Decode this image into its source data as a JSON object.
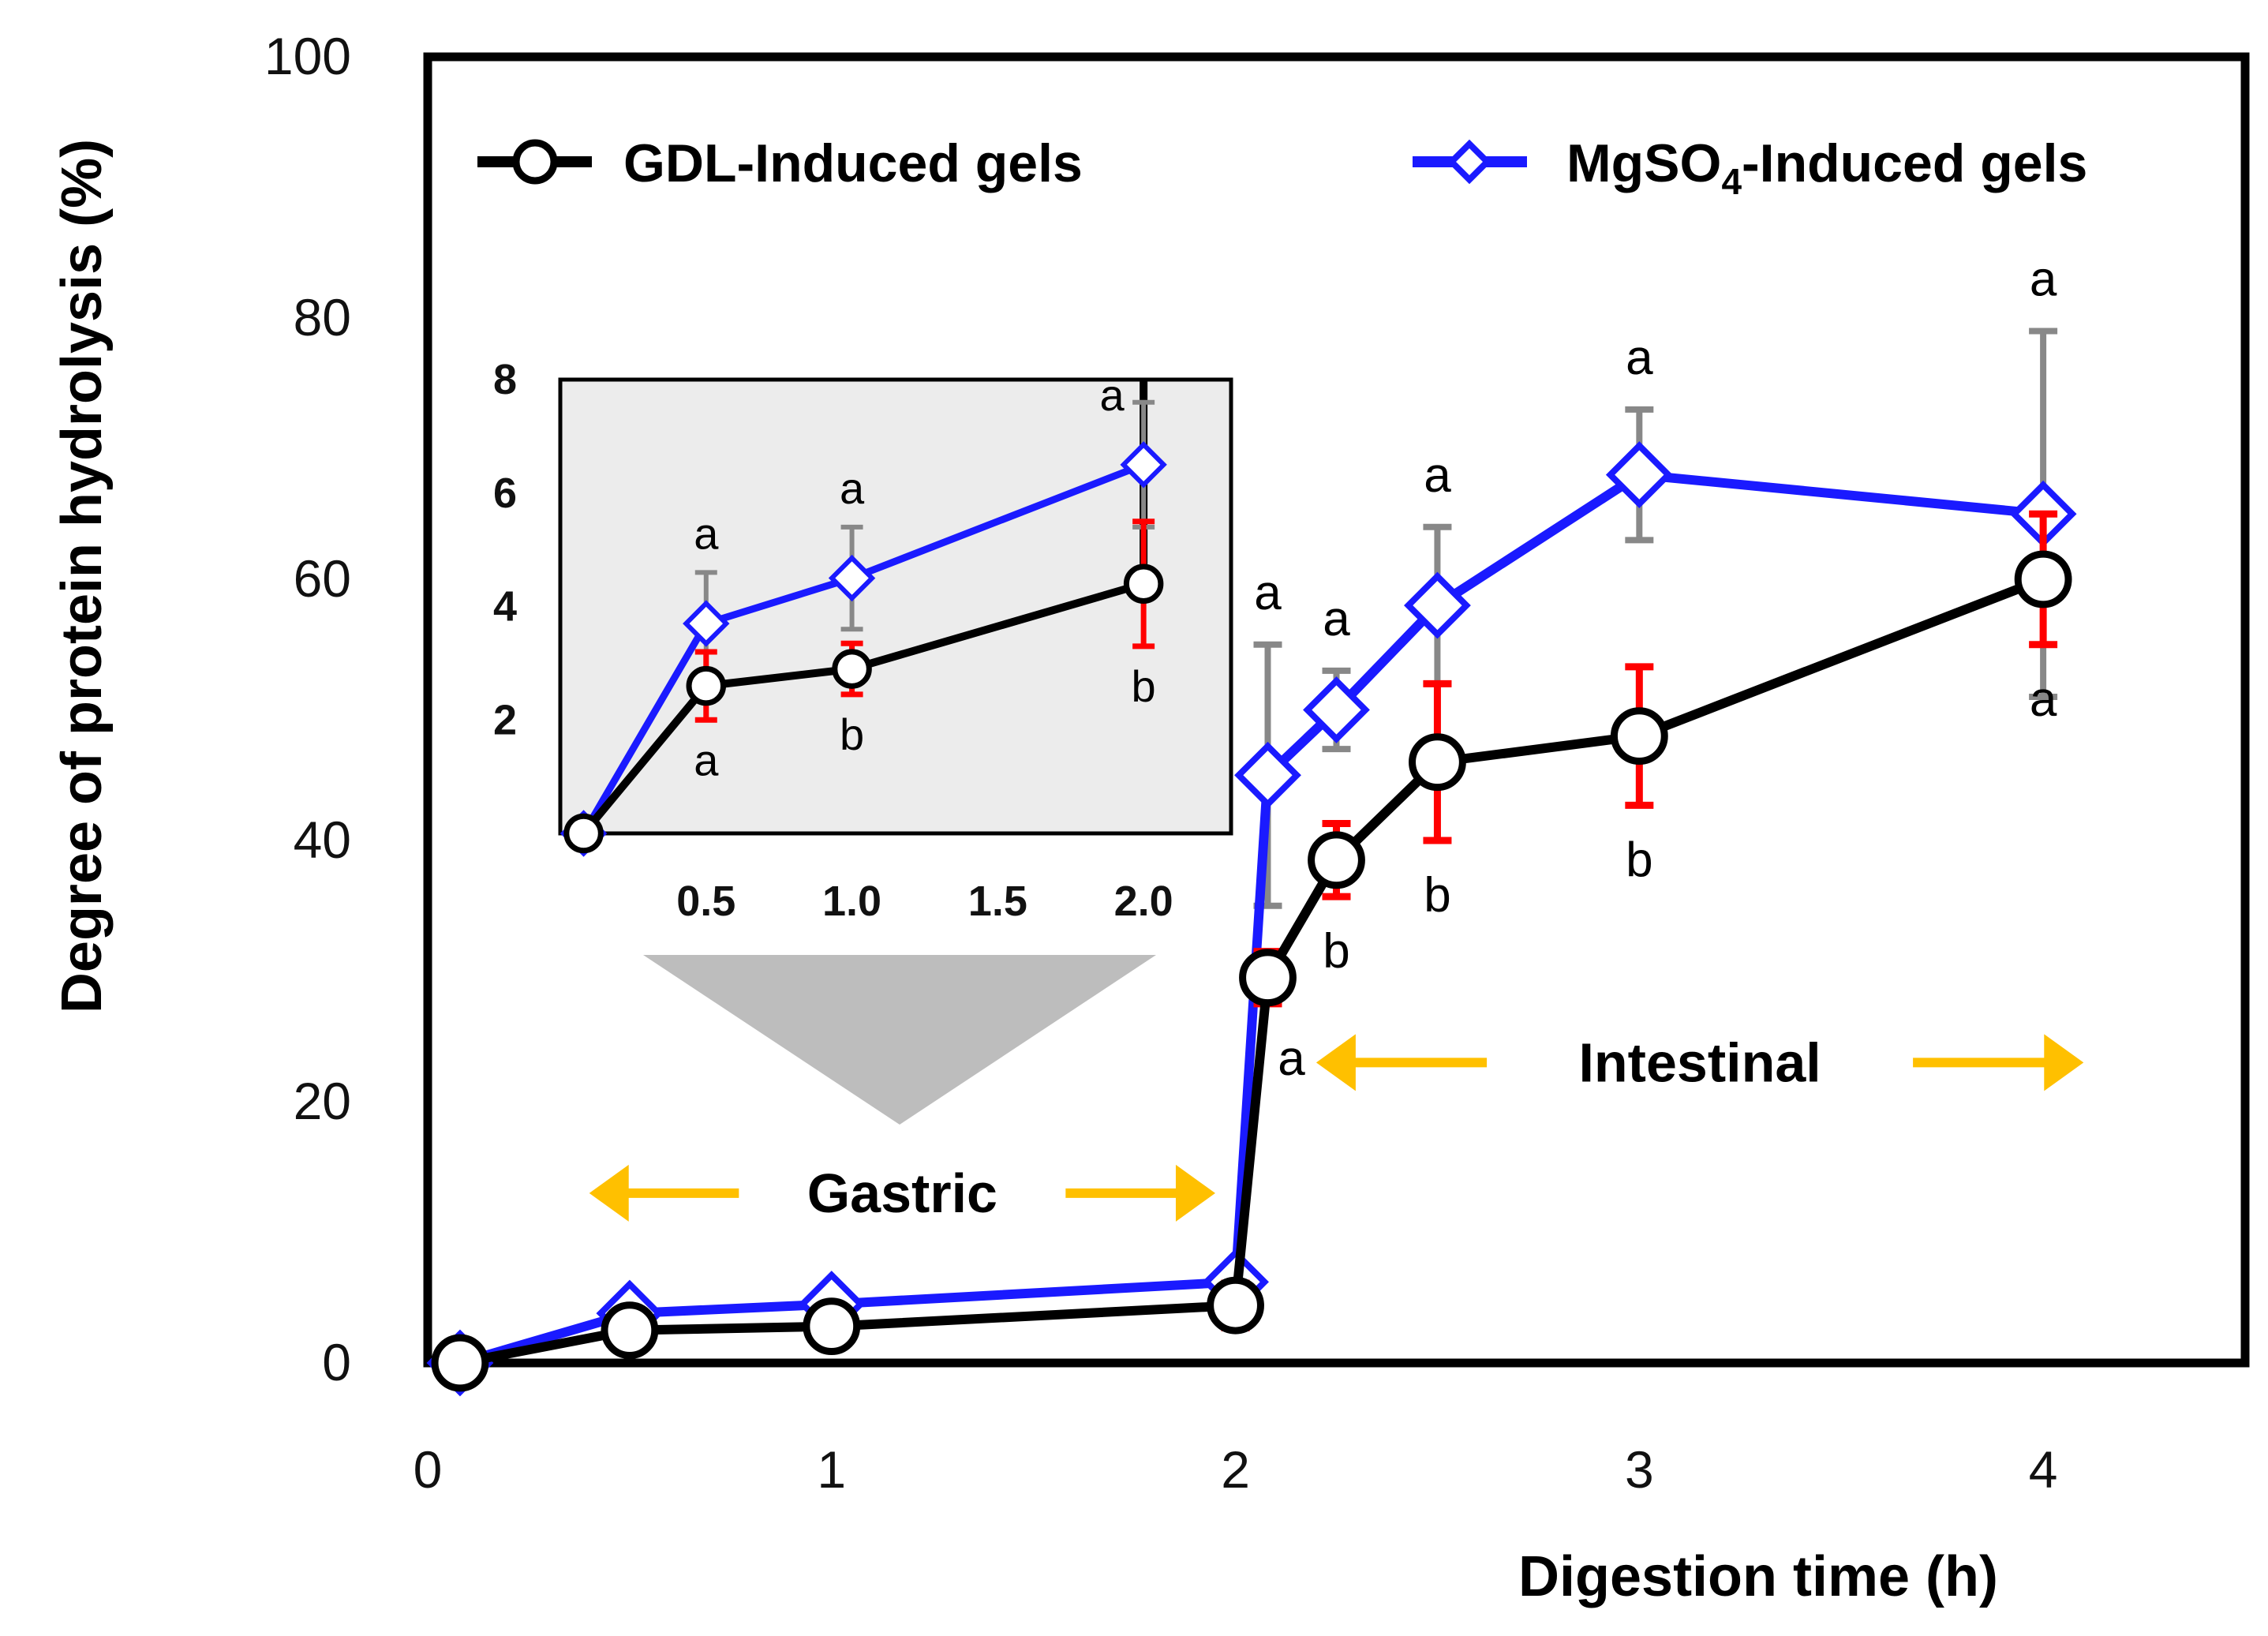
{
  "chart_data": {
    "type": "line",
    "xlabel": "Digestion time (h)",
    "ylabel": "Degree of protein hydrolysis (%)",
    "xlim": [
      0,
      4.5
    ],
    "ylim": [
      0,
      100
    ],
    "x_ticks": [
      "0",
      "1",
      "2",
      "3",
      "4"
    ],
    "y_ticks": [
      "0",
      "20",
      "40",
      "60",
      "80",
      "100"
    ],
    "series": [
      {
        "name": "GDL-Induced gels",
        "color": "#000000",
        "marker": "circle",
        "x": [
          0.08,
          0.5,
          1.0,
          2.0,
          2.08,
          2.25,
          2.5,
          3.0,
          4.0
        ],
        "y": [
          0,
          2.5,
          2.8,
          4.4,
          29.5,
          38.5,
          46,
          48,
          60
        ],
        "err": [
          0,
          0.6,
          0.5,
          1.7,
          2,
          2.8,
          6,
          5.3,
          5
        ],
        "labels": [
          "",
          "a",
          "b",
          "b",
          "a",
          "b",
          "b",
          "b",
          "a"
        ],
        "label_side": [
          "",
          "below",
          "below",
          "below",
          "below",
          "below",
          "below",
          "below",
          "below"
        ]
      },
      {
        "name": "MgSO4-Induced gels",
        "color": "#1a1aff",
        "marker": "diamond",
        "x": [
          0.08,
          0.5,
          1.0,
          2.0,
          2.08,
          2.25,
          2.5,
          3.0,
          4.0
        ],
        "y": [
          0,
          3.8,
          4.5,
          6.2,
          45,
          50,
          58,
          68,
          65
        ],
        "err": [
          0,
          0.8,
          0.9,
          1.2,
          10,
          3,
          6,
          5,
          14
        ],
        "labels": [
          "",
          "a",
          "a",
          "a",
          "a",
          "a",
          "a",
          "a",
          "a"
        ],
        "label_side": [
          "",
          "above",
          "above",
          "above",
          "above",
          "above",
          "above",
          "above",
          "above"
        ]
      }
    ],
    "legend": {
      "gdl_label": "GDL-Induced gels",
      "mg_prefix": "MgSO",
      "mg_subscript": "4",
      "mg_suffix": "-Induced gels",
      "placement": "top"
    },
    "regions": [
      {
        "label": "Gastric",
        "x_start": 0.4,
        "x_end": 1.95,
        "y": 13,
        "arrow_color": "#ffc000"
      },
      {
        "label": "Intestinal",
        "x_start": 2.2,
        "x_end": 4.1,
        "y": 23,
        "arrow_color": "#ffc000"
      }
    ],
    "inset": {
      "background": "#ececec",
      "xlim": [
        0,
        2.3
      ],
      "ylim": [
        0,
        8
      ],
      "x_ticks": [
        "0.5",
        "1.0",
        "1.5",
        "2.0"
      ],
      "y_ticks": [
        "2",
        "4",
        "6",
        "8"
      ],
      "gdl": {
        "x": [
          0.08,
          0.5,
          1.0,
          2.0
        ],
        "y": [
          0,
          2.6,
          2.9,
          4.4
        ],
        "err": [
          0,
          0.6,
          0.45,
          1.1
        ],
        "labels": [
          "",
          "a",
          "b",
          "b"
        ]
      },
      "mg": {
        "x": [
          0.08,
          0.5,
          1.0,
          2.0
        ],
        "y": [
          0,
          3.7,
          4.5,
          6.5
        ],
        "err": [
          0,
          0.9,
          0.9,
          1.1
        ],
        "labels": [
          "",
          "a",
          "a",
          "a"
        ]
      }
    },
    "colors": {
      "gdl_error": "#ff0000",
      "mg_error": "#888888",
      "pointer": "#bdbdbd"
    }
  }
}
